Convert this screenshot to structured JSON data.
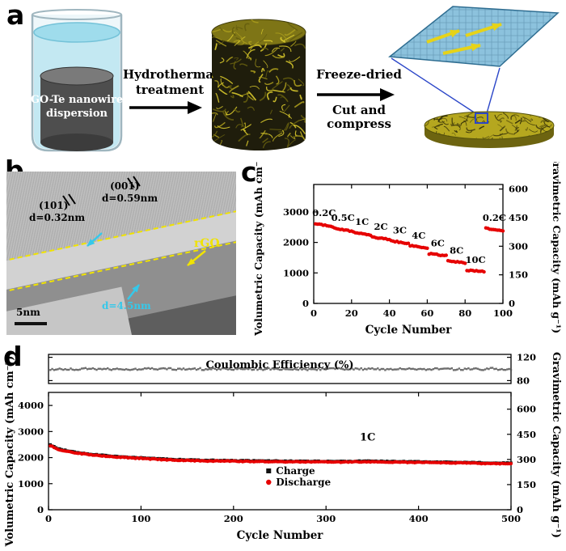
{
  "figure": {
    "panel_a": {
      "label": "a",
      "beaker_line1": "GO-Te nanowire",
      "beaker_line2": "dispersion",
      "step1_line1": "Hydrothermal",
      "step1_line2": "treatment",
      "step2_top": "Freeze-dried",
      "step2_bottom": "Cut and compress"
    },
    "panel_b": {
      "label": "b",
      "lattice1_name": "(101)",
      "lattice1_d": "d=0.32nm",
      "lattice2_name": "(001)",
      "lattice2_d": "d=0.59nm",
      "rgo_label": "rGO",
      "coating_thickness": "d=4.5nm",
      "scale_bar": "5nm"
    },
    "panel_c": {
      "label": "c"
    },
    "panel_d": {
      "label": "d"
    }
  },
  "chart_data": [
    {
      "panel": "c",
      "type": "scatter",
      "xlabel": "Cycle Number",
      "ylabel_left": "Volumetric Capacity (mAh cm⁻³)",
      "ylabel_right": "Gravimetric  Capacity (mAh g⁻¹)",
      "xlim": [
        0,
        100
      ],
      "xticks": [
        0,
        20,
        40,
        60,
        80,
        100
      ],
      "ylim_left": [
        0,
        3900
      ],
      "yticks_left": [
        0,
        1000,
        2000,
        3000
      ],
      "ylim_right": [
        0,
        624
      ],
      "yticks_right": [
        0,
        150,
        300,
        450,
        600
      ],
      "marker_color": "#e60000",
      "rate_steps": [
        {
          "label": "0.2C",
          "start": 1,
          "end": 10,
          "capacity": 2620
        },
        {
          "label": "0.5C",
          "start": 11,
          "end": 20,
          "capacity": 2470
        },
        {
          "label": "1C",
          "start": 21,
          "end": 30,
          "capacity": 2330
        },
        {
          "label": "2C",
          "start": 31,
          "end": 40,
          "capacity": 2180
        },
        {
          "label": "3C",
          "start": 41,
          "end": 50,
          "capacity": 2050
        },
        {
          "label": "4C",
          "start": 51,
          "end": 60,
          "capacity": 1890
        },
        {
          "label": "6C",
          "start": 61,
          "end": 70,
          "capacity": 1630
        },
        {
          "label": "8C",
          "start": 71,
          "end": 80,
          "capacity": 1390
        },
        {
          "label": "10C",
          "start": 81,
          "end": 90,
          "capacity": 1090
        },
        {
          "label": "0.2C",
          "start": 91,
          "end": 100,
          "capacity": 2470
        }
      ]
    },
    {
      "panel": "d",
      "type": "scatter",
      "xlabel": "Cycle Number",
      "ylabel_left": "Volumetric Capacity (mAh cm⁻³)",
      "ylabel_right": "Gravimetric  Capacity (mAh g⁻¹)",
      "annotation": "1C",
      "xlim": [
        0,
        500
      ],
      "xticks": [
        0,
        100,
        200,
        300,
        400,
        500
      ],
      "ylim_left": [
        0,
        4500
      ],
      "yticks_left": [
        0,
        1000,
        2000,
        3000,
        4000
      ],
      "ylim_right": [
        0,
        700
      ],
      "yticks_right": [
        0,
        150,
        300,
        450,
        600
      ],
      "series": [
        {
          "name": "Charge",
          "color": "#111111",
          "marker": "square",
          "x": [
            1,
            10,
            20,
            30,
            40,
            50,
            60,
            70,
            80,
            90,
            100,
            110,
            120,
            130,
            140,
            150,
            160,
            170,
            180,
            190,
            200,
            210,
            220,
            230,
            240,
            250,
            260,
            270,
            280,
            290,
            300,
            310,
            320,
            330,
            340,
            350,
            360,
            370,
            380,
            390,
            400,
            410,
            420,
            430,
            440,
            450,
            460,
            470,
            480,
            490,
            500
          ],
          "y": [
            2505,
            2345,
            2265,
            2205,
            2155,
            2115,
            2085,
            2055,
            2035,
            2015,
            1995,
            1975,
            1955,
            1940,
            1925,
            1915,
            1905,
            1900,
            1895,
            1890,
            1885,
            1880,
            1875,
            1873,
            1870,
            1868,
            1865,
            1863,
            1860,
            1858,
            1855,
            1853,
            1855,
            1860,
            1865,
            1863,
            1860,
            1855,
            1850,
            1845,
            1840,
            1835,
            1830,
            1825,
            1820,
            1815,
            1810,
            1805,
            1800,
            1795,
            1790
          ]
        },
        {
          "name": "Discharge",
          "color": "#e60000",
          "marker": "circle",
          "x": [
            1,
            10,
            20,
            30,
            40,
            50,
            60,
            70,
            80,
            90,
            100,
            110,
            120,
            130,
            140,
            150,
            160,
            170,
            180,
            190,
            200,
            210,
            220,
            230,
            240,
            250,
            260,
            270,
            280,
            290,
            300,
            310,
            320,
            330,
            340,
            350,
            360,
            370,
            380,
            390,
            400,
            410,
            420,
            430,
            440,
            450,
            460,
            470,
            480,
            490,
            500
          ],
          "y": [
            2480,
            2320,
            2240,
            2180,
            2130,
            2090,
            2060,
            2030,
            2010,
            1990,
            1970,
            1950,
            1930,
            1915,
            1900,
            1890,
            1880,
            1875,
            1870,
            1865,
            1860,
            1855,
            1850,
            1848,
            1845,
            1843,
            1840,
            1838,
            1835,
            1833,
            1830,
            1828,
            1830,
            1835,
            1840,
            1838,
            1835,
            1830,
            1825,
            1820,
            1815,
            1810,
            1805,
            1800,
            1795,
            1790,
            1785,
            1780,
            1775,
            1770,
            1765
          ]
        }
      ]
    },
    {
      "panel": "d-top",
      "type": "scatter",
      "title": "Coulombic Efficiency (%)",
      "ylim": [
        75,
        125
      ],
      "yticks": [
        80,
        120
      ],
      "x": [
        1,
        10,
        20,
        30,
        40,
        50,
        60,
        70,
        80,
        90,
        100,
        110,
        120,
        130,
        140,
        150,
        160,
        170,
        180,
        190,
        200,
        210,
        220,
        230,
        240,
        250,
        260,
        270,
        280,
        290,
        300,
        310,
        320,
        330,
        340,
        350,
        360,
        370,
        380,
        390,
        400,
        410,
        420,
        430,
        440,
        450,
        460,
        470,
        480,
        490,
        500
      ],
      "y": [
        99.2,
        99.8,
        100.1,
        99.5,
        100.3,
        99.7,
        100.0,
        99.4,
        100.2,
        99.6,
        99.9,
        100.1,
        99.5,
        99.8,
        100.0,
        99.6,
        100.2,
        99.4,
        99.9,
        100.1,
        99.7,
        99.5,
        100.0,
        99.8,
        100.2,
        99.6,
        99.9,
        100.1,
        99.5,
        99.8,
        100.0,
        99.7,
        100.2,
        99.4,
        99.9,
        100.1,
        99.6,
        99.8,
        100.0,
        99.5,
        100.2,
        99.7,
        99.9,
        100.1,
        99.4,
        99.8,
        100.0,
        99.6,
        100.2,
        99.5,
        99.9
      ]
    }
  ]
}
